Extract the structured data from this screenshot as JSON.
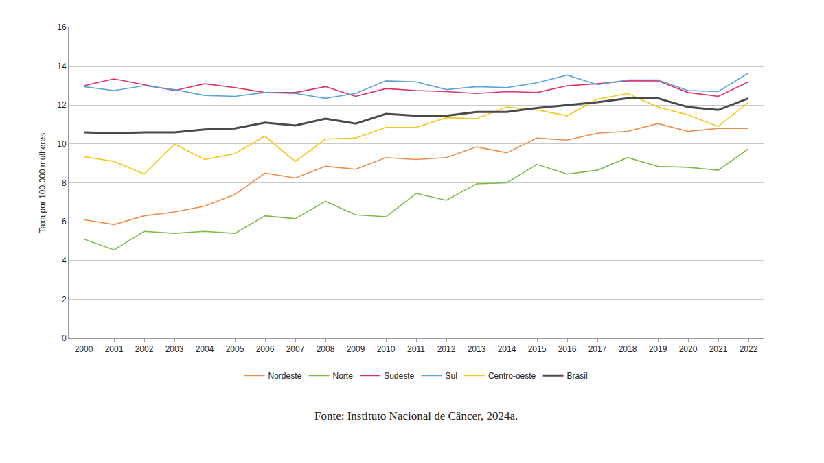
{
  "chart_data": {
    "type": "line",
    "y_label": "Taxa por 100.000 mulheres",
    "annotations": [
      "Fonte: Instituto Nacional de Câncer, 2024a."
    ],
    "categories": [
      "2000",
      "2001",
      "2002",
      "2003",
      "2004",
      "2005",
      "2006",
      "2007",
      "2008",
      "2009",
      "2010",
      "2011",
      "2012",
      "2013",
      "2014",
      "2015",
      "2016",
      "2017",
      "2018",
      "2019",
      "2020",
      "2021",
      "2022"
    ],
    "series": [
      {
        "name": "Nordeste",
        "color": "#ed8e4a",
        "values": [
          6.1,
          5.85,
          6.3,
          6.5,
          6.8,
          7.4,
          8.5,
          8.25,
          8.85,
          8.7,
          9.3,
          9.2,
          9.3,
          9.85,
          9.55,
          10.3,
          10.2,
          10.55,
          10.65,
          11.05,
          10.65,
          10.8,
          10.8
        ]
      },
      {
        "name": "Norte",
        "color": "#7dba4a",
        "values": [
          5.1,
          4.55,
          5.5,
          5.4,
          5.5,
          5.4,
          6.3,
          6.15,
          7.05,
          6.35,
          6.25,
          7.45,
          7.1,
          7.95,
          8.0,
          8.95,
          8.45,
          8.65,
          9.3,
          8.85,
          8.8,
          8.65,
          9.75
        ]
      },
      {
        "name": "Sudeste",
        "color": "#e0306a",
        "values": [
          13.0,
          13.35,
          13.05,
          12.75,
          13.1,
          12.9,
          12.65,
          12.65,
          12.95,
          12.45,
          12.85,
          12.75,
          12.7,
          12.6,
          12.7,
          12.65,
          13.0,
          13.1,
          13.25,
          13.25,
          12.65,
          12.45,
          13.2
        ]
      },
      {
        "name": "Sul",
        "color": "#5ba3db",
        "values": [
          12.95,
          12.75,
          13.0,
          12.8,
          12.5,
          12.45,
          12.65,
          12.6,
          12.35,
          12.6,
          13.25,
          13.2,
          12.8,
          12.95,
          12.9,
          13.15,
          13.55,
          13.05,
          13.3,
          13.3,
          12.75,
          12.7,
          13.65
        ]
      },
      {
        "name": "Centro-oeste",
        "color": "#f5c518",
        "values": [
          9.35,
          9.1,
          8.45,
          10.0,
          9.2,
          9.5,
          10.4,
          9.1,
          10.25,
          10.3,
          10.85,
          10.85,
          11.35,
          11.3,
          11.9,
          11.75,
          11.45,
          12.3,
          12.6,
          11.9,
          11.5,
          10.9,
          12.15
        ]
      },
      {
        "name": "Brasil",
        "color": "#4a4a4a",
        "values": [
          10.6,
          10.55,
          10.6,
          10.6,
          10.75,
          10.8,
          11.1,
          10.95,
          11.3,
          11.05,
          11.55,
          11.45,
          11.45,
          11.65,
          11.65,
          11.85,
          12.0,
          12.15,
          12.35,
          12.35,
          11.9,
          11.75,
          12.35
        ]
      }
    ],
    "ylim": [
      0,
      16
    ],
    "yticks": [
      0,
      2,
      4,
      6,
      8,
      10,
      12,
      14,
      16
    ],
    "grid": true,
    "legend": "bottom"
  }
}
